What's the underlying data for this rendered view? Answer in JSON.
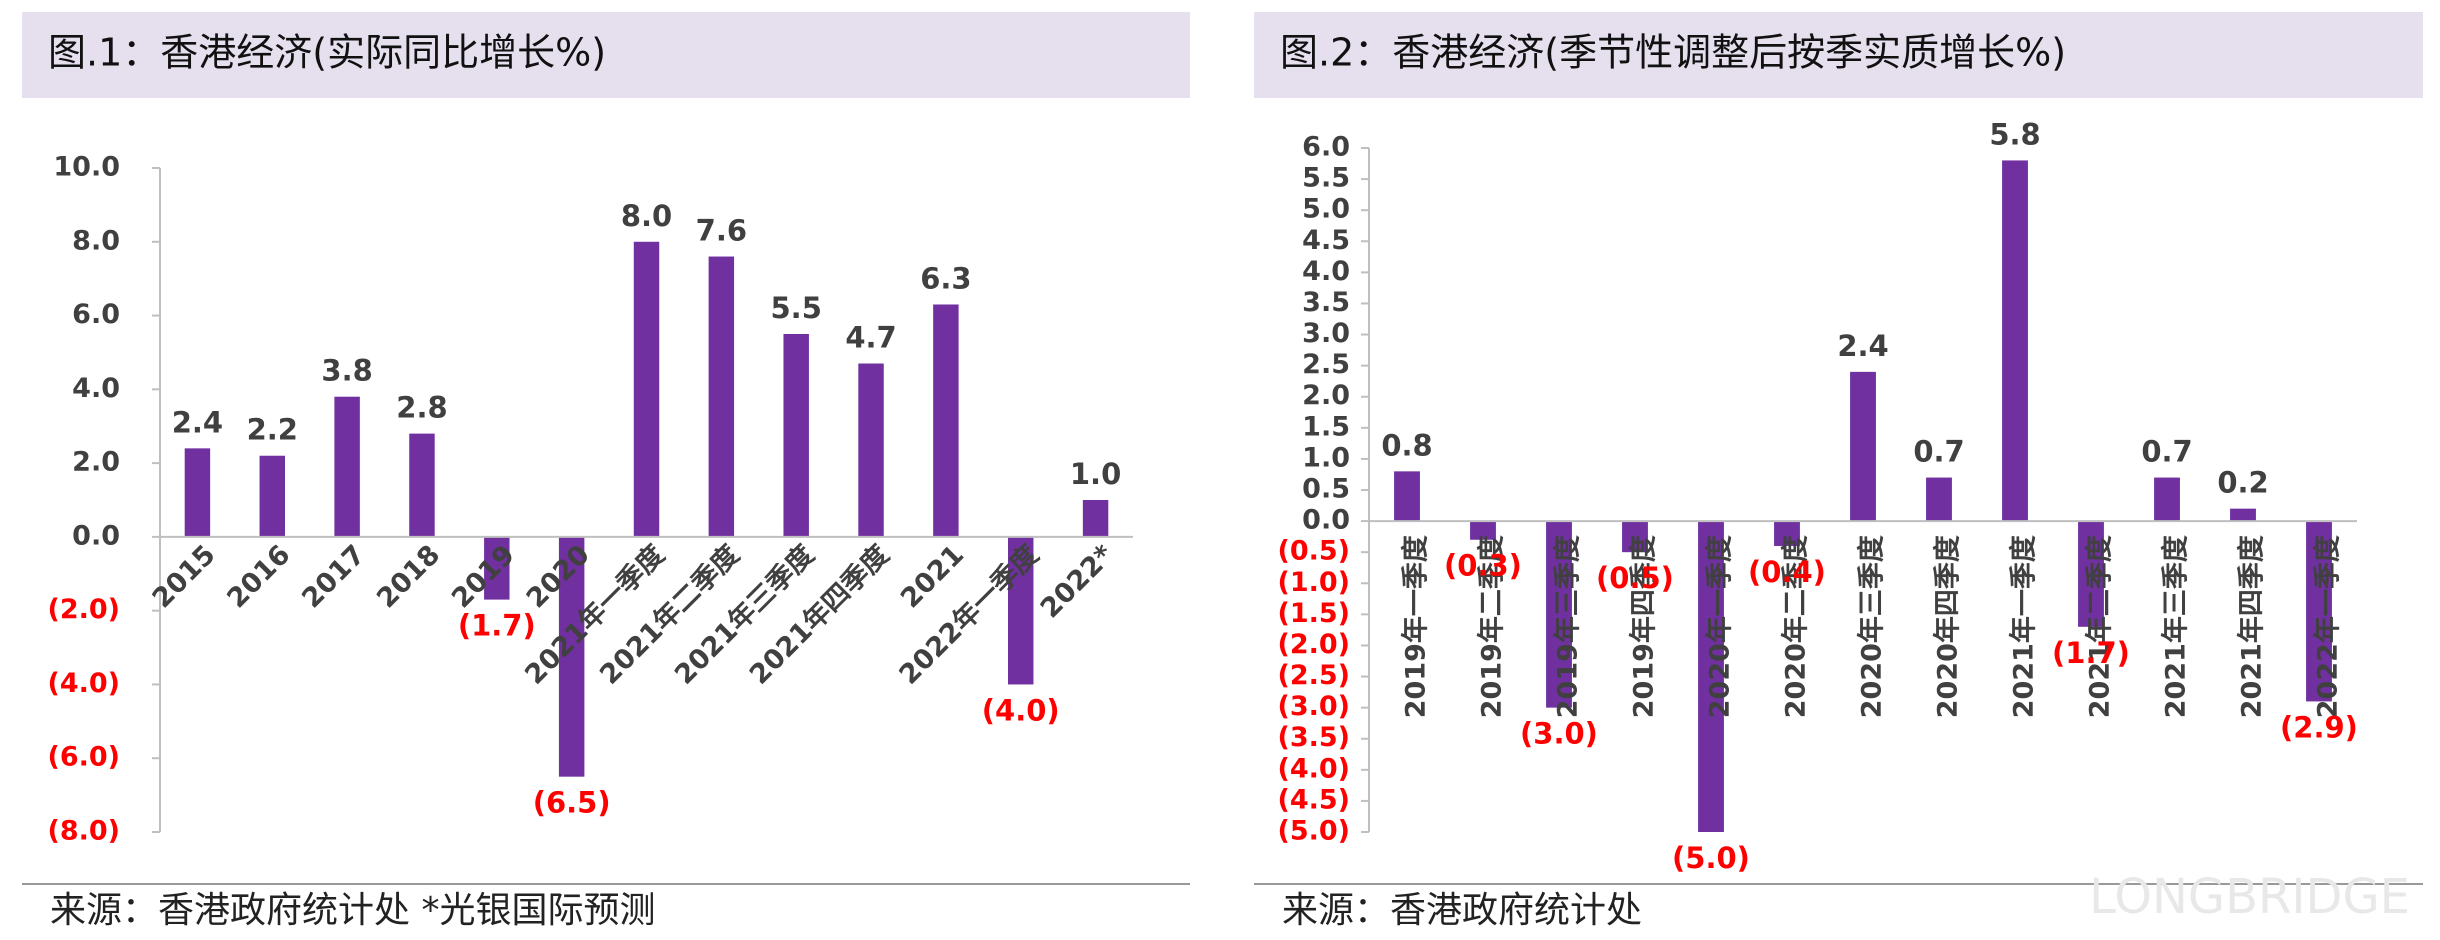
{
  "chart_data": [
    {
      "type": "bar",
      "title": "图.1：香港经济(实际同比增长%)",
      "categories": [
        "2015",
        "2016",
        "2017",
        "2018",
        "2019",
        "2020",
        "2021年一季度",
        "2021年二季度",
        "2021年三季度",
        "2021年四季度",
        "2021",
        "2022年一季度",
        "2022*"
      ],
      "values": [
        2.4,
        2.2,
        3.8,
        2.8,
        -1.7,
        -6.5,
        8.0,
        7.6,
        5.5,
        4.7,
        6.3,
        -4.0,
        1.0
      ],
      "value_labels": [
        "2.4",
        "2.2",
        "3.8",
        "2.8",
        "(1.7)",
        "(6.5)",
        "8.0",
        "7.6",
        "5.5",
        "4.7",
        "6.3",
        "(4.0)",
        "1.0"
      ],
      "color": "#7030a0",
      "negative_color": "#ff0000",
      "label_rotation": -45,
      "ylim": [
        -8,
        10
      ],
      "yticks": [
        {
          "value": -8,
          "label": "(8.0)"
        },
        {
          "value": -6,
          "label": "(6.0)"
        },
        {
          "value": -4,
          "label": "(4.0)"
        },
        {
          "value": -2,
          "label": "(2.0)"
        },
        {
          "value": 0,
          "label": "0.0"
        },
        {
          "value": 2,
          "label": "2.0"
        },
        {
          "value": 4,
          "label": "4.0"
        },
        {
          "value": 6,
          "label": "6.0"
        },
        {
          "value": 8,
          "label": "8.0"
        },
        {
          "value": 10,
          "label": "10.0"
        }
      ],
      "source": "来源：香港政府统计处 *光银国际预测"
    },
    {
      "type": "bar",
      "title": "图.2：香港经济(季节性调整后按季实质增长%)",
      "categories": [
        "2019年一季度",
        "2019年二季度",
        "2019年三季度",
        "2019年四季度",
        "2020年一季度",
        "2020年二季度",
        "2020年三季度",
        "2020年四季度",
        "2021年一季度",
        "2021年二季度",
        "2021年三季度",
        "2021年四季度",
        "2022年一季度"
      ],
      "values": [
        0.8,
        -0.3,
        -3.0,
        -0.5,
        -5.0,
        -0.4,
        2.4,
        0.7,
        5.8,
        -1.7,
        0.7,
        0.2,
        -2.9
      ],
      "value_labels": [
        "0.8",
        "(0.3)",
        "(3.0)",
        "(0.5)",
        "(5.0)",
        "(0.4)",
        "2.4",
        "0.7",
        "5.8",
        "(1.7)",
        "0.7",
        "0.2",
        "(2.9)"
      ],
      "color": "#7030a0",
      "negative_color": "#ff0000",
      "label_rotation": -90,
      "ylim": [
        -5,
        6
      ],
      "yticks": [
        {
          "value": -5,
          "label": "(5.0)"
        },
        {
          "value": -4.5,
          "label": "(4.5)"
        },
        {
          "value": -4,
          "label": "(4.0)"
        },
        {
          "value": -3.5,
          "label": "(3.5)"
        },
        {
          "value": -3,
          "label": "(3.0)"
        },
        {
          "value": -2.5,
          "label": "(2.5)"
        },
        {
          "value": -2,
          "label": "(2.0)"
        },
        {
          "value": -1.5,
          "label": "(1.5)"
        },
        {
          "value": -1,
          "label": "(1.0)"
        },
        {
          "value": -0.5,
          "label": "(0.5)"
        },
        {
          "value": 0,
          "label": "0.0"
        },
        {
          "value": 0.5,
          "label": "0.5"
        },
        {
          "value": 1,
          "label": "1.0"
        },
        {
          "value": 1.5,
          "label": "1.5"
        },
        {
          "value": 2,
          "label": "2.0"
        },
        {
          "value": 2.5,
          "label": "2.5"
        },
        {
          "value": 3,
          "label": "3.0"
        },
        {
          "value": 3.5,
          "label": "3.5"
        },
        {
          "value": 4,
          "label": "4.0"
        },
        {
          "value": 4.5,
          "label": "4.5"
        },
        {
          "value": 5,
          "label": "5.0"
        },
        {
          "value": 5.5,
          "label": "5.5"
        },
        {
          "value": 6,
          "label": "6.0"
        }
      ],
      "source": "来源：香港政府统计处",
      "watermark": "LONGBRIDGE"
    }
  ]
}
